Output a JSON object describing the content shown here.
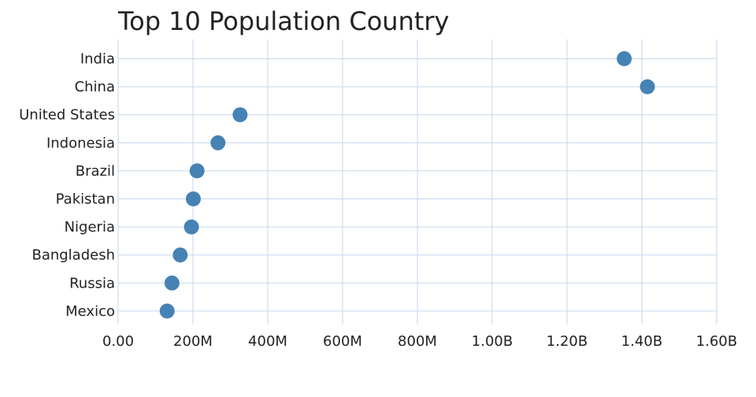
{
  "chart_data": {
    "type": "scatter",
    "title": "Top 10 Population Country",
    "categories": [
      "India",
      "China",
      "United States",
      "Indonesia",
      "Brazil",
      "Pakistan",
      "Nigeria",
      "Bangladesh",
      "Russia",
      "Mexico"
    ],
    "values": [
      1353000000,
      1415000000,
      326000000,
      267000000,
      211000000,
      201000000,
      196000000,
      166000000,
      144000000,
      131000000
    ],
    "xlim": [
      0,
      1600000000
    ],
    "x_ticks": [
      0,
      200000000,
      400000000,
      600000000,
      800000000,
      1000000000,
      1200000000,
      1400000000,
      1600000000
    ],
    "x_tick_labels": [
      "0.00",
      "200M",
      "400M",
      "600M",
      "800M",
      "1.00B",
      "1.20B",
      "1.40B",
      "1.60B"
    ],
    "xlabel": "",
    "ylabel": "",
    "grid": true,
    "legend": "none"
  },
  "colors": {
    "point": "#4682b4",
    "grid": "#c5d6ee",
    "text": "#222222"
  }
}
